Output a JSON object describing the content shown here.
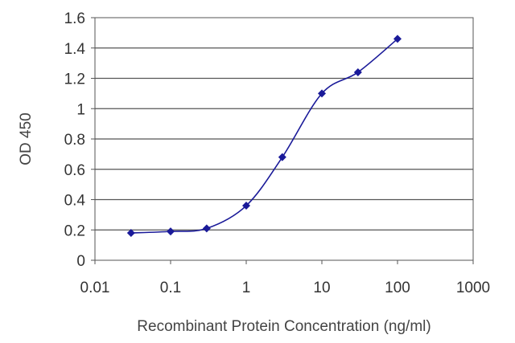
{
  "chart_data": {
    "type": "line",
    "title": "",
    "xlabel": "Recombinant Protein Concentration (ng/ml)",
    "ylabel": "OD 450",
    "x_scale": "log",
    "xlim": [
      0.01,
      1000
    ],
    "ylim": [
      0,
      1.6
    ],
    "x_ticks": [
      "0.01",
      "0.1",
      "1",
      "10",
      "100",
      "1000"
    ],
    "y_ticks": [
      "0",
      "0.2",
      "0.4",
      "0.6",
      "0.8",
      "1",
      "1.2",
      "1.4",
      "1.6"
    ],
    "grid": "horizontal",
    "legend": "none",
    "series": [
      {
        "x": [
          0.03,
          0.1,
          0.3,
          1,
          3,
          10,
          30,
          100
        ],
        "y": [
          0.18,
          0.19,
          0.21,
          0.36,
          0.68,
          1.1,
          1.24,
          1.46
        ],
        "color": "#1a1a99"
      }
    ]
  }
}
